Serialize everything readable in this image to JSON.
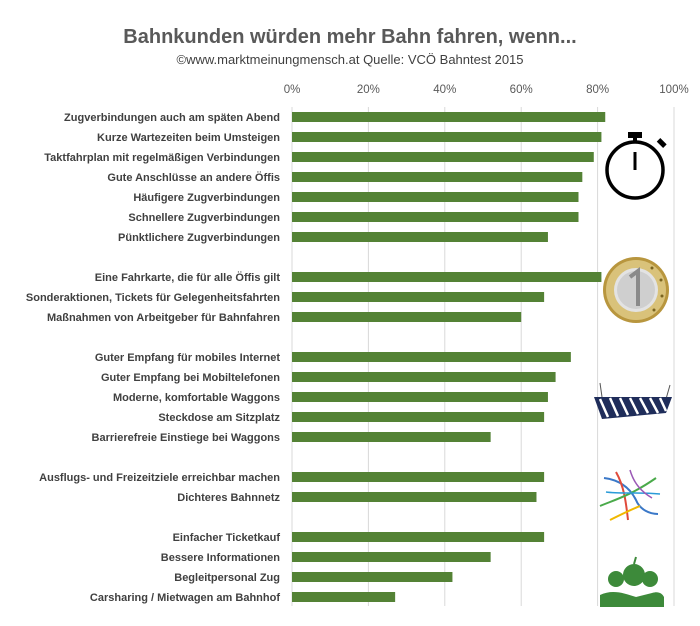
{
  "title": "Bahnkunden würden mehr Bahn fahren, wenn...",
  "subtitle": "©www.marktmeinungmensch.at Quelle: VCÖ Bahntest 2015",
  "colors": {
    "bar": "#548235",
    "grid": "#d9d9d9"
  },
  "icons": [
    "stopwatch-icon",
    "euro-coin-icon",
    "hammock-icon",
    "network-map-icon",
    "apple-hand-icon"
  ],
  "chart_data": {
    "type": "bar",
    "orientation": "horizontal",
    "xlim": [
      0,
      100
    ],
    "x_ticks": [
      "0%",
      "20%",
      "40%",
      "60%",
      "80%",
      "100%"
    ],
    "grid": true,
    "groups": [
      {
        "icon": "stopwatch-icon",
        "items": [
          {
            "label": "Zugverbindungen auch am späten Abend",
            "value": 82
          },
          {
            "label": "Kurze Wartezeiten beim Umsteigen",
            "value": 81
          },
          {
            "label": "Taktfahrplan mit regelmäßigen Verbindungen",
            "value": 79
          },
          {
            "label": "Gute Anschlüsse an andere Öffis",
            "value": 76
          },
          {
            "label": "Häufigere Zugverbindungen",
            "value": 75
          },
          {
            "label": "Schnellere Zugverbindungen",
            "value": 75
          },
          {
            "label": "Pünktlichere Zugverbindungen",
            "value": 67
          }
        ]
      },
      {
        "icon": "euro-coin-icon",
        "items": [
          {
            "label": "Eine Fahrkarte, die für alle Öffis gilt",
            "value": 81
          },
          {
            "label": "Sonderaktionen, Tickets für Gelegenheitsfahrten",
            "value": 66
          },
          {
            "label": "Maßnahmen von Arbeitgeber für Bahnfahren",
            "value": 60
          }
        ]
      },
      {
        "icon": "hammock-icon",
        "items": [
          {
            "label": "Guter Empfang für mobiles Internet",
            "value": 73
          },
          {
            "label": "Guter Empfang bei Mobiltelefonen",
            "value": 69
          },
          {
            "label": "Moderne, komfortable Waggons",
            "value": 67
          },
          {
            "label": "Steckdose am Sitzplatz",
            "value": 66
          },
          {
            "label": "Barrierefreie Einstiege bei Waggons",
            "value": 52
          }
        ]
      },
      {
        "icon": "network-map-icon",
        "items": [
          {
            "label": "Ausflugs- und Freizeitziele erreichbar machen",
            "value": 66
          },
          {
            "label": "Dichteres Bahnnetz",
            "value": 64
          }
        ]
      },
      {
        "icon": "apple-hand-icon",
        "items": [
          {
            "label": "Einfacher Ticketkauf",
            "value": 66
          },
          {
            "label": "Bessere Informationen",
            "value": 52
          },
          {
            "label": "Begleitpersonal Zug",
            "value": 42
          },
          {
            "label": "Carsharing / Mietwagen  am Bahnhof",
            "value": 27
          }
        ]
      }
    ]
  }
}
